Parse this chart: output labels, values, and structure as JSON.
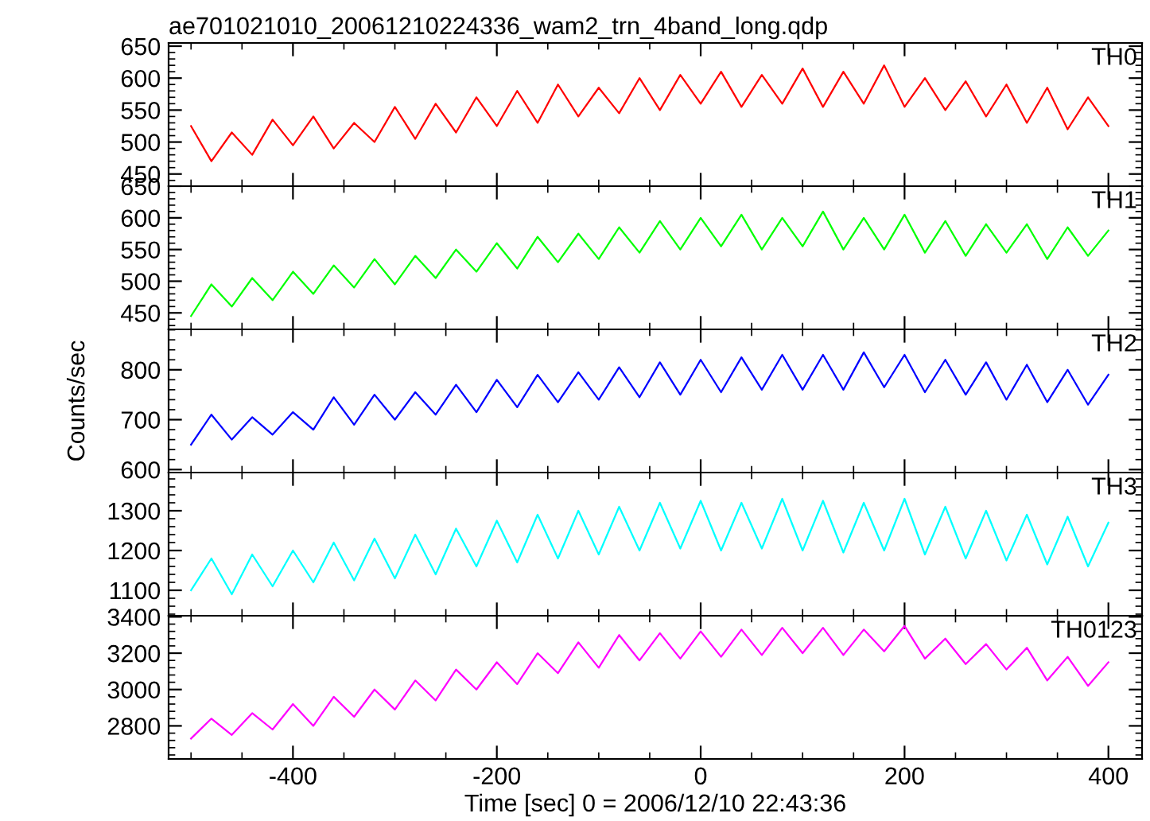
{
  "chart_data": [
    {
      "type": "line",
      "title": "ae701021010_20061210224336_wam2_trn_4band_long.qdp",
      "tick_labels": "y",
      "x": [
        -500,
        -480,
        -460,
        -440,
        -420,
        -400,
        -380,
        -360,
        -340,
        -320,
        -300,
        -280,
        -260,
        -240,
        -220,
        -200,
        -180,
        -160,
        -140,
        -120,
        -100,
        -80,
        -60,
        -40,
        -20,
        0,
        20,
        40,
        60,
        80,
        100,
        120,
        140,
        160,
        180,
        200,
        220,
        240,
        260,
        280,
        300,
        320,
        340,
        360,
        380,
        400
      ],
      "xlim": [
        -522,
        433
      ],
      "xticks": [
        -400,
        -200,
        0,
        200,
        400
      ],
      "ylim": [
        431,
        655
      ],
      "yticks": [
        450,
        500,
        550,
        600,
        650
      ],
      "series": [
        {
          "name": "TH0",
          "color": "#ff0000",
          "values": [
            525,
            470,
            515,
            480,
            535,
            495,
            540,
            490,
            530,
            500,
            555,
            505,
            560,
            515,
            570,
            525,
            580,
            530,
            590,
            540,
            585,
            545,
            600,
            550,
            605,
            560,
            610,
            555,
            605,
            560,
            615,
            555,
            610,
            560,
            620,
            555,
            600,
            550,
            595,
            540,
            590,
            530,
            585,
            520,
            570,
            525
          ]
        }
      ]
    },
    {
      "type": "line",
      "tick_labels": "y",
      "x": [
        -500,
        -480,
        -460,
        -440,
        -420,
        -400,
        -380,
        -360,
        -340,
        -320,
        -300,
        -280,
        -260,
        -240,
        -220,
        -200,
        -180,
        -160,
        -140,
        -120,
        -100,
        -80,
        -60,
        -40,
        -20,
        0,
        20,
        40,
        60,
        80,
        100,
        120,
        140,
        160,
        180,
        200,
        220,
        240,
        260,
        280,
        300,
        320,
        340,
        360,
        380,
        400
      ],
      "xlim": [
        -522,
        433
      ],
      "xticks": [
        -400,
        -200,
        0,
        200,
        400
      ],
      "ylim": [
        424,
        650
      ],
      "yticks": [
        450,
        500,
        550,
        600,
        650
      ],
      "series": [
        {
          "name": "TH1",
          "color": "#00ff00",
          "values": [
            445,
            495,
            460,
            505,
            470,
            515,
            480,
            525,
            490,
            535,
            495,
            540,
            505,
            550,
            515,
            560,
            520,
            570,
            530,
            575,
            535,
            585,
            545,
            595,
            550,
            600,
            555,
            605,
            550,
            600,
            555,
            610,
            550,
            600,
            550,
            605,
            545,
            595,
            540,
            590,
            545,
            590,
            535,
            585,
            540,
            580
          ]
        }
      ]
    },
    {
      "type": "line",
      "ylabel": "Counts/sec",
      "tick_labels": "y",
      "x": [
        -500,
        -480,
        -460,
        -440,
        -420,
        -400,
        -380,
        -360,
        -340,
        -320,
        -300,
        -280,
        -260,
        -240,
        -220,
        -200,
        -180,
        -160,
        -140,
        -120,
        -100,
        -80,
        -60,
        -40,
        -20,
        0,
        20,
        40,
        60,
        80,
        100,
        120,
        140,
        160,
        180,
        200,
        220,
        240,
        260,
        280,
        300,
        320,
        340,
        360,
        380,
        400
      ],
      "xlim": [
        -522,
        433
      ],
      "xticks": [
        -400,
        -200,
        0,
        200,
        400
      ],
      "ylim": [
        594,
        881
      ],
      "yticks": [
        600,
        700,
        800
      ],
      "series": [
        {
          "name": "TH2",
          "color": "#0000ff",
          "values": [
            650,
            710,
            660,
            705,
            670,
            715,
            680,
            745,
            690,
            750,
            700,
            755,
            710,
            770,
            715,
            780,
            725,
            790,
            735,
            795,
            740,
            805,
            745,
            815,
            750,
            820,
            755,
            825,
            760,
            830,
            760,
            830,
            760,
            835,
            765,
            830,
            755,
            820,
            750,
            815,
            740,
            810,
            735,
            800,
            730,
            790
          ]
        }
      ]
    },
    {
      "type": "line",
      "tick_labels": "y",
      "x": [
        -500,
        -480,
        -460,
        -440,
        -420,
        -400,
        -380,
        -360,
        -340,
        -320,
        -300,
        -280,
        -260,
        -240,
        -220,
        -200,
        -180,
        -160,
        -140,
        -120,
        -100,
        -80,
        -60,
        -40,
        -20,
        0,
        20,
        40,
        60,
        80,
        100,
        120,
        140,
        160,
        180,
        200,
        220,
        240,
        260,
        280,
        300,
        320,
        340,
        360,
        380,
        400
      ],
      "xlim": [
        -522,
        433
      ],
      "xticks": [
        -400,
        -200,
        0,
        200,
        400
      ],
      "ylim": [
        1036,
        1396
      ],
      "yticks": [
        1100,
        1200,
        1300
      ],
      "series": [
        {
          "name": "TH3",
          "color": "#00ffff",
          "values": [
            1100,
            1180,
            1090,
            1190,
            1110,
            1200,
            1120,
            1220,
            1125,
            1230,
            1130,
            1240,
            1140,
            1255,
            1160,
            1275,
            1170,
            1290,
            1180,
            1300,
            1190,
            1310,
            1200,
            1320,
            1205,
            1325,
            1200,
            1320,
            1205,
            1330,
            1200,
            1325,
            1195,
            1320,
            1200,
            1330,
            1190,
            1310,
            1180,
            1300,
            1175,
            1290,
            1165,
            1285,
            1160,
            1270
          ]
        }
      ]
    },
    {
      "type": "line",
      "xlabel": "Time [sec] 0 = 2006/12/10 22:43:36",
      "x": [
        -500,
        -480,
        -460,
        -440,
        -420,
        -400,
        -380,
        -360,
        -340,
        -320,
        -300,
        -280,
        -260,
        -240,
        -220,
        -200,
        -180,
        -160,
        -140,
        -120,
        -100,
        -80,
        -60,
        -40,
        -20,
        0,
        20,
        40,
        60,
        80,
        100,
        120,
        140,
        160,
        180,
        200,
        220,
        240,
        260,
        280,
        300,
        320,
        340,
        360,
        380,
        400
      ],
      "xlim": [
        -522,
        433
      ],
      "xticks": [
        -400,
        -200,
        0,
        200,
        400
      ],
      "ylim": [
        2618,
        3406
      ],
      "yticks": [
        2800,
        3000,
        3200,
        3400
      ],
      "series": [
        {
          "name": "TH0123",
          "color": "#ff00ff",
          "values": [
            2730,
            2840,
            2750,
            2870,
            2780,
            2920,
            2800,
            2960,
            2850,
            3000,
            2890,
            3050,
            2940,
            3110,
            3000,
            3150,
            3030,
            3200,
            3090,
            3260,
            3120,
            3300,
            3160,
            3310,
            3170,
            3320,
            3180,
            3330,
            3190,
            3340,
            3200,
            3340,
            3190,
            3330,
            3210,
            3350,
            3170,
            3280,
            3140,
            3250,
            3110,
            3230,
            3050,
            3180,
            3020,
            3150
          ]
        }
      ]
    }
  ]
}
